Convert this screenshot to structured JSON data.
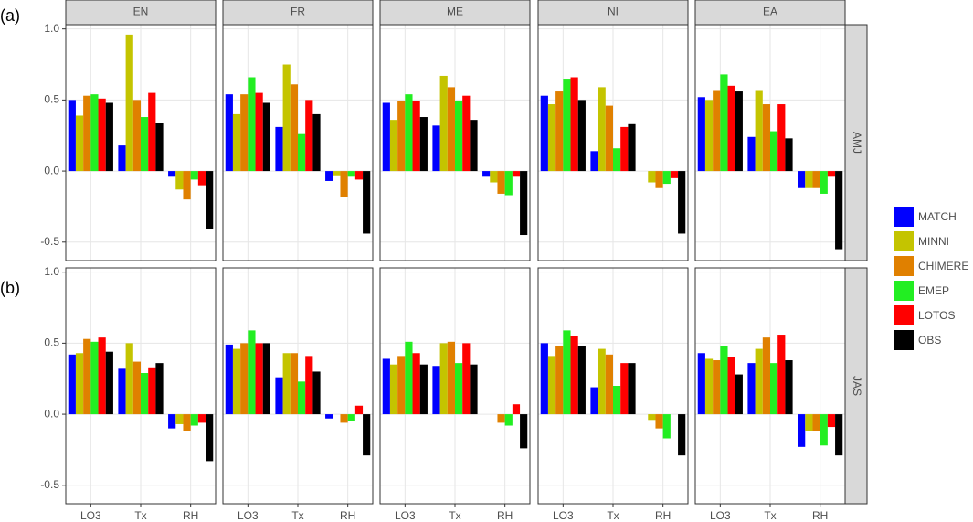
{
  "chart_data": {
    "type": "bar",
    "panel_labels": [
      "(a)",
      "(b)"
    ],
    "columns": [
      "EN",
      "FR",
      "ME",
      "NI",
      "EA"
    ],
    "rows": [
      "AMJ",
      "JAS"
    ],
    "categories": [
      "LO3",
      "Tx",
      "RH"
    ],
    "ylim": [
      -0.63,
      1.03
    ],
    "yticks": [
      -0.5,
      {
        "value": 0,
        "label": "0.0"
      },
      0.5,
      {
        "value": 1,
        "label": "1.0"
      }
    ],
    "grid": true,
    "series": [
      {
        "name": "MATCH",
        "color": "#0000ff",
        "values": [
          [
            [
              0.5,
              0.18,
              -0.04
            ],
            [
              0.54,
              0.31,
              -0.07
            ],
            [
              0.48,
              0.32,
              -0.04
            ],
            [
              0.53,
              0.14,
              0
            ],
            [
              0.52,
              0.24,
              -0.12
            ]
          ],
          [
            [
              0.42,
              0.32,
              -0.1
            ],
            [
              0.49,
              0.26,
              -0.03
            ],
            [
              0.39,
              0.34,
              0
            ],
            [
              0.5,
              0.19,
              0
            ],
            [
              0.43,
              0.36,
              -0.23
            ]
          ]
        ]
      },
      {
        "name": "MINNI",
        "color": "#c4c400",
        "values": [
          [
            [
              0.39,
              0.96,
              -0.13
            ],
            [
              0.4,
              0.75,
              -0.03
            ],
            [
              0.36,
              0.67,
              -0.08
            ],
            [
              0.47,
              0.59,
              -0.08
            ],
            [
              0.5,
              0.57,
              -0.12
            ]
          ],
          [
            [
              0.43,
              0.5,
              -0.07
            ],
            [
              0.46,
              0.43,
              0
            ],
            [
              0.35,
              0.5,
              0
            ],
            [
              0.41,
              0.46,
              -0.04
            ],
            [
              0.39,
              0.46,
              -0.12
            ]
          ]
        ]
      },
      {
        "name": "CHIMERE",
        "color": "#e08000",
        "values": [
          [
            [
              0.53,
              0.5,
              -0.2
            ],
            [
              0.54,
              0.61,
              -0.18
            ],
            [
              0.49,
              0.59,
              -0.16
            ],
            [
              0.56,
              0.46,
              -0.12
            ],
            [
              0.57,
              0.47,
              -0.12
            ]
          ],
          [
            [
              0.53,
              0.37,
              -0.12
            ],
            [
              0.5,
              0.43,
              -0.06
            ],
            [
              0.41,
              0.51,
              -0.06
            ],
            [
              0.48,
              0.42,
              -0.1
            ],
            [
              0.38,
              0.54,
              -0.12
            ]
          ]
        ]
      },
      {
        "name": "EMEP",
        "color": "#22ee22",
        "values": [
          [
            [
              0.54,
              0.38,
              -0.06
            ],
            [
              0.66,
              0.26,
              -0.04
            ],
            [
              0.54,
              0.49,
              -0.17
            ],
            [
              0.65,
              0.16,
              -0.09
            ],
            [
              0.68,
              0.28,
              -0.16
            ]
          ],
          [
            [
              0.51,
              0.29,
              -0.08
            ],
            [
              0.59,
              0.23,
              -0.05
            ],
            [
              0.51,
              0.36,
              -0.08
            ],
            [
              0.59,
              0.2,
              -0.17
            ],
            [
              0.48,
              0.36,
              -0.22
            ]
          ]
        ]
      },
      {
        "name": "LOTOS",
        "color": "#ff0000",
        "values": [
          [
            [
              0.51,
              0.55,
              -0.1
            ],
            [
              0.55,
              0.5,
              -0.06
            ],
            [
              0.49,
              0.53,
              -0.04
            ],
            [
              0.66,
              0.31,
              -0.05
            ],
            [
              0.6,
              0.47,
              -0.04
            ]
          ],
          [
            [
              0.54,
              0.33,
              -0.06
            ],
            [
              0.5,
              0.41,
              0.06
            ],
            [
              0.43,
              0.5,
              0.07
            ],
            [
              0.55,
              0.36,
              0
            ],
            [
              0.4,
              0.56,
              -0.09
            ]
          ]
        ]
      },
      {
        "name": "OBS",
        "color": "#000000",
        "values": [
          [
            [
              0.48,
              0.34,
              -0.41
            ],
            [
              0.48,
              0.4,
              -0.44
            ],
            [
              0.38,
              0.36,
              -0.45
            ],
            [
              0.5,
              0.33,
              -0.44
            ],
            [
              0.56,
              0.23,
              -0.55
            ]
          ],
          [
            [
              0.44,
              0.36,
              -0.33
            ],
            [
              0.5,
              0.3,
              -0.29
            ],
            [
              0.35,
              0.35,
              -0.24
            ],
            [
              0.48,
              0.36,
              -0.29
            ],
            [
              0.28,
              0.38,
              -0.29
            ]
          ]
        ]
      }
    ]
  }
}
